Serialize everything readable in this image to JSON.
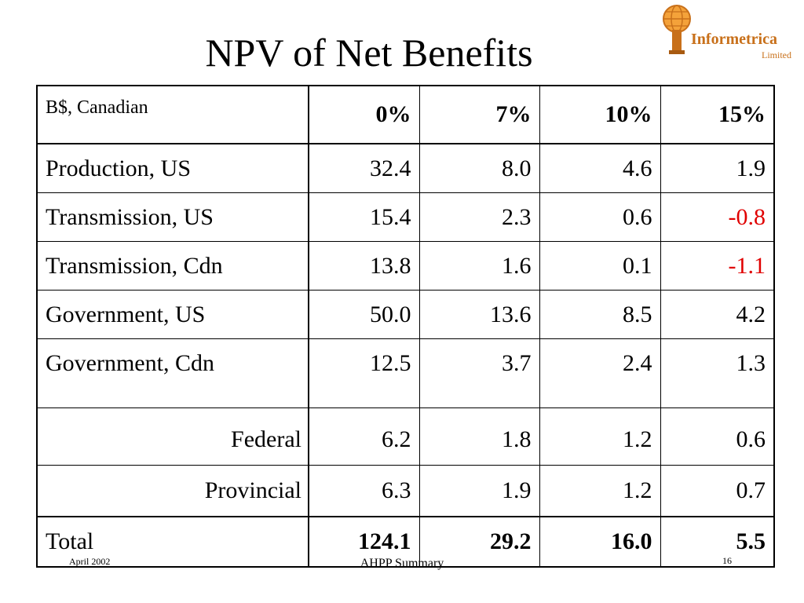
{
  "slide": {
    "title": "NPV of Net Benefits",
    "logo": {
      "name": "Informetrica",
      "sub": "Limited"
    },
    "table": {
      "unit_label": "B$, Canadian",
      "columns": [
        "0%",
        "7%",
        "10%",
        "15%"
      ],
      "rows": [
        {
          "label": "Production, US",
          "values": [
            "32.4",
            "8.0",
            "4.6",
            "1.9"
          ]
        },
        {
          "label": "Transmission, US",
          "values": [
            "15.4",
            "2.3",
            "0.6",
            "-0.8"
          ]
        },
        {
          "label": "Transmission, Cdn",
          "values": [
            "13.8",
            "1.6",
            "0.1",
            "-1.1"
          ]
        },
        {
          "label": "Government, US",
          "values": [
            "50.0",
            "13.6",
            "8.5",
            "4.2"
          ]
        },
        {
          "label": "Government, Cdn",
          "values": [
            "12.5",
            "3.7",
            "2.4",
            "1.3"
          ]
        },
        {
          "label": "Federal",
          "values": [
            "6.2",
            "1.8",
            "1.2",
            "0.6"
          ]
        },
        {
          "label": "Provincial",
          "values": [
            "6.3",
            "1.9",
            "1.2",
            "0.7"
          ]
        },
        {
          "label": "Total",
          "values": [
            "124.1",
            "29.2",
            "16.0",
            "5.5"
          ]
        }
      ]
    },
    "footer": {
      "date": "April 2002",
      "center": "AHPP Summary",
      "page": "16"
    },
    "colors": {
      "negative": "#e00000",
      "logo": "#c8701a"
    }
  }
}
